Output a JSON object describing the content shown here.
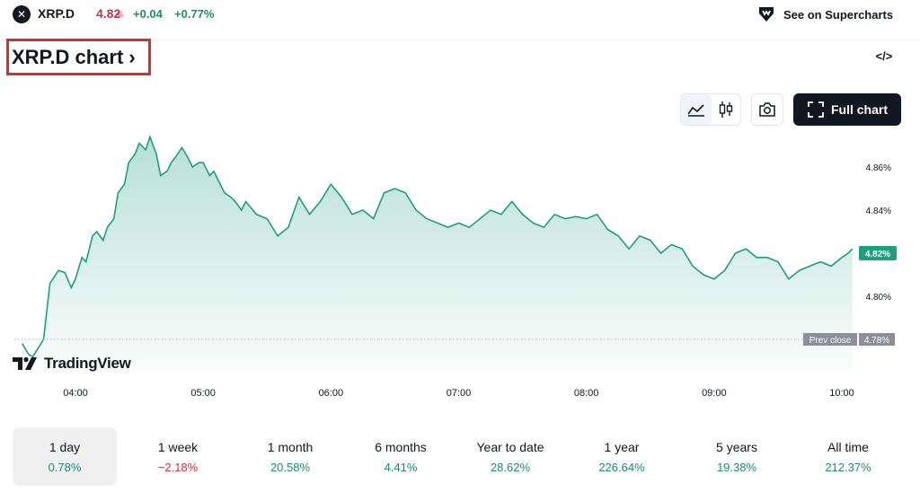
{
  "header": {
    "symbol_icon": "x-logo-icon",
    "symbol": "XRP.D",
    "price": "4.82",
    "price_unit": "%",
    "change": "+0.04",
    "change_percent": "+0.77%",
    "supercharts_link": "See on Supercharts"
  },
  "chart_title": "XRP.D chart ›",
  "toolbar": {
    "embed_icon": "code-icon",
    "area_icon": "area-chart-icon",
    "candles_icon": "candlestick-icon",
    "camera_icon": "camera-icon",
    "full_chart_label": "Full chart"
  },
  "brand": "TradingView",
  "colors": {
    "line": "#1e9e7a",
    "positive": "#1e8c6e",
    "negative": "#c2344a",
    "dark": "#131722"
  },
  "chart_data": {
    "type": "area",
    "x_ticks": [
      "04:00",
      "05:00",
      "06:00",
      "07:00",
      "08:00",
      "09:00",
      "10:00"
    ],
    "y_ticks": [
      "4.86%",
      "4.84%",
      "4.82%",
      "4.80%"
    ],
    "ylim": [
      4.765,
      4.875
    ],
    "prev_close": 4.78,
    "prev_close_label": "Prev close",
    "prev_close_value": "4.78%",
    "last_value": 4.82,
    "last_value_label": "4.82%",
    "x": [
      "03:35",
      "03:38",
      "03:40",
      "03:45",
      "03:48",
      "03:52",
      "03:55",
      "03:58",
      "04:00",
      "04:03",
      "04:05",
      "04:08",
      "04:10",
      "04:13",
      "04:15",
      "04:18",
      "04:20",
      "04:23",
      "04:25",
      "04:28",
      "04:30",
      "04:33",
      "04:35",
      "04:38",
      "04:40",
      "04:43",
      "04:45",
      "04:48",
      "04:50",
      "04:53",
      "04:55",
      "04:58",
      "05:00",
      "05:03",
      "05:05",
      "05:08",
      "05:10",
      "05:13",
      "05:15",
      "05:18",
      "05:20",
      "05:25",
      "05:30",
      "05:35",
      "05:40",
      "05:45",
      "05:50",
      "05:55",
      "06:00",
      "06:05",
      "06:10",
      "06:15",
      "06:20",
      "06:25",
      "06:30",
      "06:35",
      "06:40",
      "06:45",
      "06:50",
      "06:55",
      "07:00",
      "07:05",
      "07:10",
      "07:15",
      "07:20",
      "07:25",
      "07:30",
      "07:35",
      "07:40",
      "07:45",
      "07:50",
      "07:55",
      "08:00",
      "08:05",
      "08:10",
      "08:15",
      "08:20",
      "08:25",
      "08:30",
      "08:35",
      "08:40",
      "08:45",
      "08:50",
      "08:55",
      "09:00",
      "09:05",
      "09:10",
      "09:15",
      "09:20",
      "09:25",
      "09:30",
      "09:35",
      "09:40",
      "09:45",
      "09:50",
      "09:55",
      "10:00",
      "10:03",
      "10:05"
    ],
    "y": [
      4.778,
      4.773,
      4.772,
      4.78,
      4.806,
      4.812,
      4.811,
      4.804,
      4.808,
      4.818,
      4.816,
      4.828,
      4.83,
      4.826,
      4.832,
      4.836,
      4.848,
      4.852,
      4.862,
      4.866,
      4.871,
      4.868,
      4.874,
      4.866,
      4.856,
      4.858,
      4.862,
      4.866,
      4.869,
      4.864,
      4.86,
      4.862,
      4.862,
      4.856,
      4.858,
      4.852,
      4.848,
      4.846,
      4.844,
      4.84,
      4.844,
      4.838,
      4.836,
      4.828,
      4.832,
      4.846,
      4.838,
      4.844,
      4.852,
      4.846,
      4.838,
      4.84,
      4.836,
      4.848,
      4.85,
      4.848,
      4.84,
      4.836,
      4.834,
      4.832,
      4.834,
      4.832,
      4.836,
      4.84,
      4.838,
      4.844,
      4.838,
      4.834,
      4.832,
      4.838,
      4.836,
      4.837,
      4.836,
      4.838,
      4.831,
      4.828,
      4.822,
      4.828,
      4.826,
      4.82,
      4.824,
      4.822,
      4.814,
      4.81,
      4.808,
      4.812,
      4.82,
      4.822,
      4.818,
      4.818,
      4.816,
      4.808,
      4.812,
      4.814,
      4.816,
      4.814,
      4.818,
      4.82,
      4.822
    ]
  },
  "periods": [
    {
      "label": "1 day",
      "value": "0.78%",
      "dir": "pos"
    },
    {
      "label": "1 week",
      "value": "−2.18%",
      "dir": "neg"
    },
    {
      "label": "1 month",
      "value": "20.58%",
      "dir": "pos"
    },
    {
      "label": "6 months",
      "value": "4.41%",
      "dir": "pos"
    },
    {
      "label": "Year to date",
      "value": "28.62%",
      "dir": "pos"
    },
    {
      "label": "1 year",
      "value": "226.64%",
      "dir": "pos"
    },
    {
      "label": "5 years",
      "value": "19.38%",
      "dir": "pos"
    },
    {
      "label": "All time",
      "value": "212.37%",
      "dir": "pos"
    }
  ]
}
